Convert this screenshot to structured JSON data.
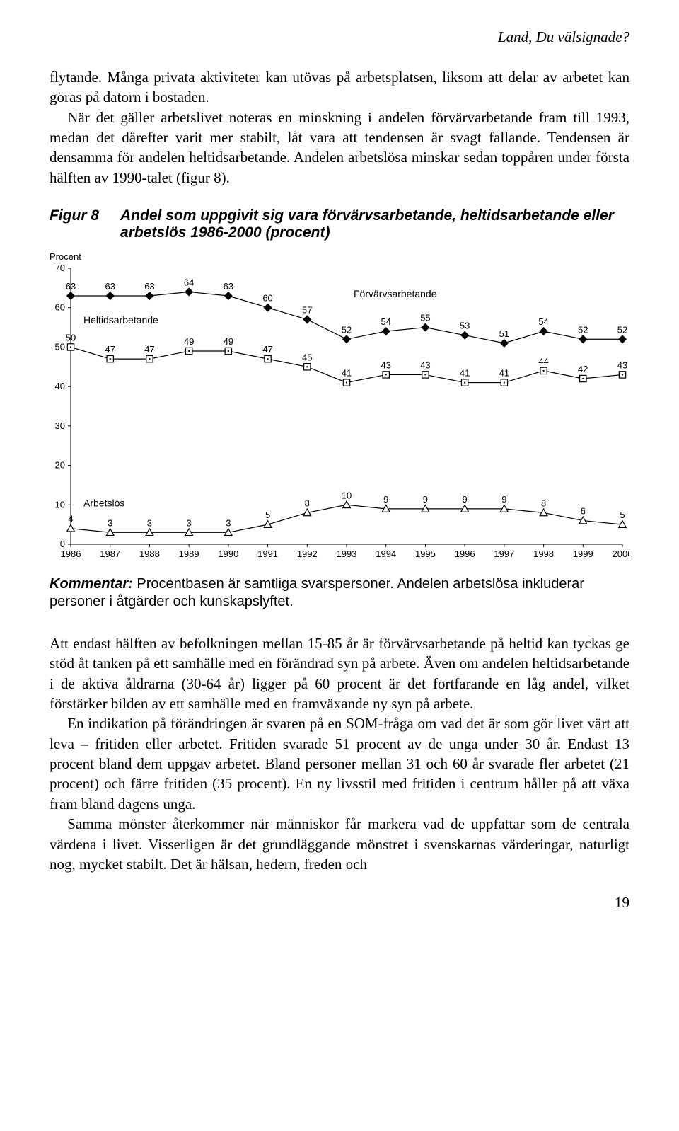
{
  "header": {
    "running_title": "Land, Du välsignade?"
  },
  "paragraph1": "flytande. Många privata aktiviteter kan utövas på arbetsplatsen, liksom att delar av arbetet kan göras på datorn i bostaden.",
  "paragraph2": "När det gäller arbetslivet noteras en minskning i andelen förvärvarbetande fram till 1993, medan det därefter varit mer stabilt, låt vara att tendensen är svagt fallande. Tendensen är densamma för andelen heltidsarbetande. Andelen arbetslösa minskar sedan toppåren under första hälften av 1990-talet (figur 8).",
  "figure": {
    "number": "Figur 8",
    "title": "Andel som uppgivit sig vara förvärvsarbetande, heltidsarbetande eller arbetslös 1986-2000 (procent)",
    "y_axis_label": "Procent",
    "ylim": [
      0,
      70
    ],
    "ytick_step": 10,
    "yticks": [
      0,
      10,
      20,
      30,
      40,
      50,
      60,
      70
    ],
    "years": [
      1986,
      1987,
      1988,
      1989,
      1990,
      1991,
      1992,
      1993,
      1994,
      1995,
      1996,
      1997,
      1998,
      1999,
      2000
    ],
    "series": {
      "forvarvsarbetande": {
        "label": "Förvärvsarbetande",
        "marker": "diamond",
        "values": [
          63,
          63,
          63,
          64,
          63,
          60,
          57,
          52,
          54,
          55,
          53,
          51,
          54,
          52,
          52
        ]
      },
      "heltidsarbetande": {
        "label": "Heltidsarbetande",
        "marker": "square",
        "values": [
          50,
          47,
          47,
          49,
          49,
          47,
          45,
          41,
          43,
          43,
          41,
          41,
          44,
          42,
          43
        ]
      },
      "arbetslos": {
        "label": "Arbetslös",
        "marker": "triangle",
        "values": [
          4,
          3,
          3,
          3,
          3,
          5,
          8,
          10,
          9,
          9,
          9,
          9,
          8,
          6,
          5
        ]
      }
    },
    "colors": {
      "line": "#000000",
      "marker_fill": "#ffffff",
      "marker_stroke": "#000000",
      "axis": "#000000",
      "text": "#000000",
      "background": "#ffffff"
    },
    "font_size_axis": 13,
    "font_size_value_label": 13,
    "font_size_series_label": 14,
    "line_width": 1.2,
    "marker_size": 7
  },
  "kommentar_lead": "Kommentar:",
  "kommentar_text": " Procentbasen är samtliga svarspersoner. Andelen arbetslösa inkluderar personer i åtgärder och kunskapslyftet.",
  "paragraph3": "Att endast hälften av befolkningen mellan 15-85 år är förvärvsarbetande på heltid kan tyckas ge stöd åt tanken på ett samhälle med en förändrad syn på arbete. Även om andelen heltidsarbetande i de aktiva åldrarna (30-64 år) ligger på 60 procent är det fortfarande en låg andel, vilket förstärker bilden av ett samhälle med en framväxande ny syn på arbete.",
  "paragraph4": "En indikation på förändringen är svaren på en SOM-fråga om vad det är som gör livet värt att leva – fritiden eller arbetet. Fritiden svarade 51 procent av de unga under 30 år. Endast 13 procent bland dem uppgav arbetet. Bland personer mellan 31 och 60 år svarade fler arbetet (21 procent) och färre fritiden (35 procent). En ny livsstil med fritiden i centrum håller på att växa fram bland dagens unga.",
  "paragraph5": "Samma mönster återkommer när människor får markera vad de uppfattar som de centrala värdena i livet. Visserligen är det grundläggande mönstret i svenskarnas värderingar, naturligt nog, mycket stabilt. Det är hälsan, hedern, freden och",
  "page_number": "19"
}
